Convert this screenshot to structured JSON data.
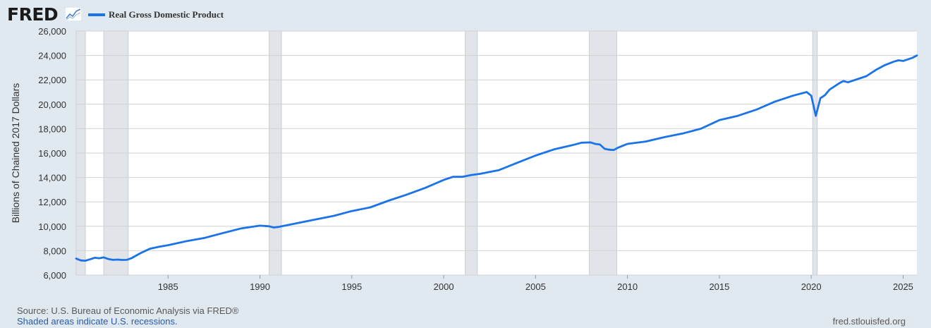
{
  "header": {
    "logo_text": "FRED",
    "logo_icon": "line-chart-icon"
  },
  "footer": {
    "source": "Source: U.S. Bureau of Economic Analysis via FRED®",
    "note": "Shaded areas indicate U.S. recessions.",
    "site": "fred.stlouisfed.org"
  },
  "colors": {
    "line": "#1a73e8",
    "background": "#e1e9f0",
    "plot_background": "#ffffff",
    "recession_shade": "#e1e5e9",
    "grid": "#d2d2d2"
  },
  "chart_data": {
    "type": "line",
    "title": "",
    "xlabel": "",
    "ylabel": "Billions of Chained 2017 Dollars",
    "xlim": [
      1980.0,
      2025.75
    ],
    "ylim": [
      6000,
      26000
    ],
    "yticks": [
      6000,
      8000,
      10000,
      12000,
      14000,
      16000,
      18000,
      20000,
      22000,
      24000,
      26000
    ],
    "ytick_labels": [
      "6,000",
      "8,000",
      "10,000",
      "12,000",
      "14,000",
      "16,000",
      "18,000",
      "20,000",
      "22,000",
      "24,000",
      "26,000"
    ],
    "xticks": [
      1985,
      1990,
      1995,
      2000,
      2005,
      2010,
      2015,
      2020,
      2025
    ],
    "xtick_labels": [
      "1985",
      "1990",
      "1995",
      "2000",
      "2005",
      "2010",
      "2015",
      "2020",
      "2025"
    ],
    "grid": true,
    "legend": "top-left",
    "recessions": [
      [
        1980.0,
        1980.5
      ],
      [
        1981.5,
        1982.83
      ],
      [
        1990.5,
        1991.17
      ],
      [
        2001.17,
        2001.83
      ],
      [
        2007.92,
        2009.42
      ],
      [
        2020.08,
        2020.33
      ]
    ],
    "series": [
      {
        "name": "Real Gross Domestic Product",
        "x": [
          1980.0,
          1980.25,
          1980.5,
          1980.75,
          1981.0,
          1981.25,
          1981.5,
          1981.75,
          1982.0,
          1982.25,
          1982.5,
          1982.75,
          1983.0,
          1983.5,
          1984.0,
          1984.5,
          1985.0,
          1986.0,
          1987.0,
          1988.0,
          1989.0,
          1990.0,
          1990.5,
          1990.75,
          1991.0,
          1992.0,
          1993.0,
          1994.0,
          1995.0,
          1996.0,
          1997.0,
          1998.0,
          1999.0,
          2000.0,
          2000.5,
          2001.0,
          2001.5,
          2002.0,
          2002.5,
          2003.0,
          2003.5,
          2004.0,
          2005.0,
          2006.0,
          2007.0,
          2007.5,
          2008.0,
          2008.25,
          2008.5,
          2008.75,
          2009.0,
          2009.25,
          2009.5,
          2010.0,
          2011.0,
          2012.0,
          2013.0,
          2014.0,
          2015.0,
          2016.0,
          2017.0,
          2018.0,
          2019.0,
          2019.75,
          2020.0,
          2020.25,
          2020.5,
          2020.75,
          2021.0,
          2021.5,
          2021.75,
          2022.0,
          2022.5,
          2023.0,
          2023.5,
          2024.0,
          2024.5,
          2024.75,
          2025.0,
          2025.5,
          2025.75
        ],
        "y": [
          7350,
          7200,
          7180,
          7290,
          7420,
          7380,
          7450,
          7320,
          7250,
          7270,
          7240,
          7250,
          7380,
          7800,
          8150,
          8320,
          8450,
          8780,
          9050,
          9450,
          9830,
          10050,
          10000,
          9900,
          9950,
          10250,
          10550,
          10850,
          11250,
          11550,
          12100,
          12600,
          13150,
          13800,
          14050,
          14050,
          14200,
          14300,
          14450,
          14600,
          14900,
          15200,
          15800,
          16300,
          16650,
          16850,
          16870,
          16750,
          16700,
          16350,
          16280,
          16250,
          16450,
          16750,
          16950,
          17300,
          17600,
          18000,
          18700,
          19050,
          19550,
          20200,
          20700,
          21000,
          20700,
          19050,
          20500,
          20750,
          21200,
          21700,
          21900,
          21800,
          22050,
          22300,
          22800,
          23200,
          23500,
          23600,
          23550,
          23800,
          24000
        ]
      }
    ]
  }
}
